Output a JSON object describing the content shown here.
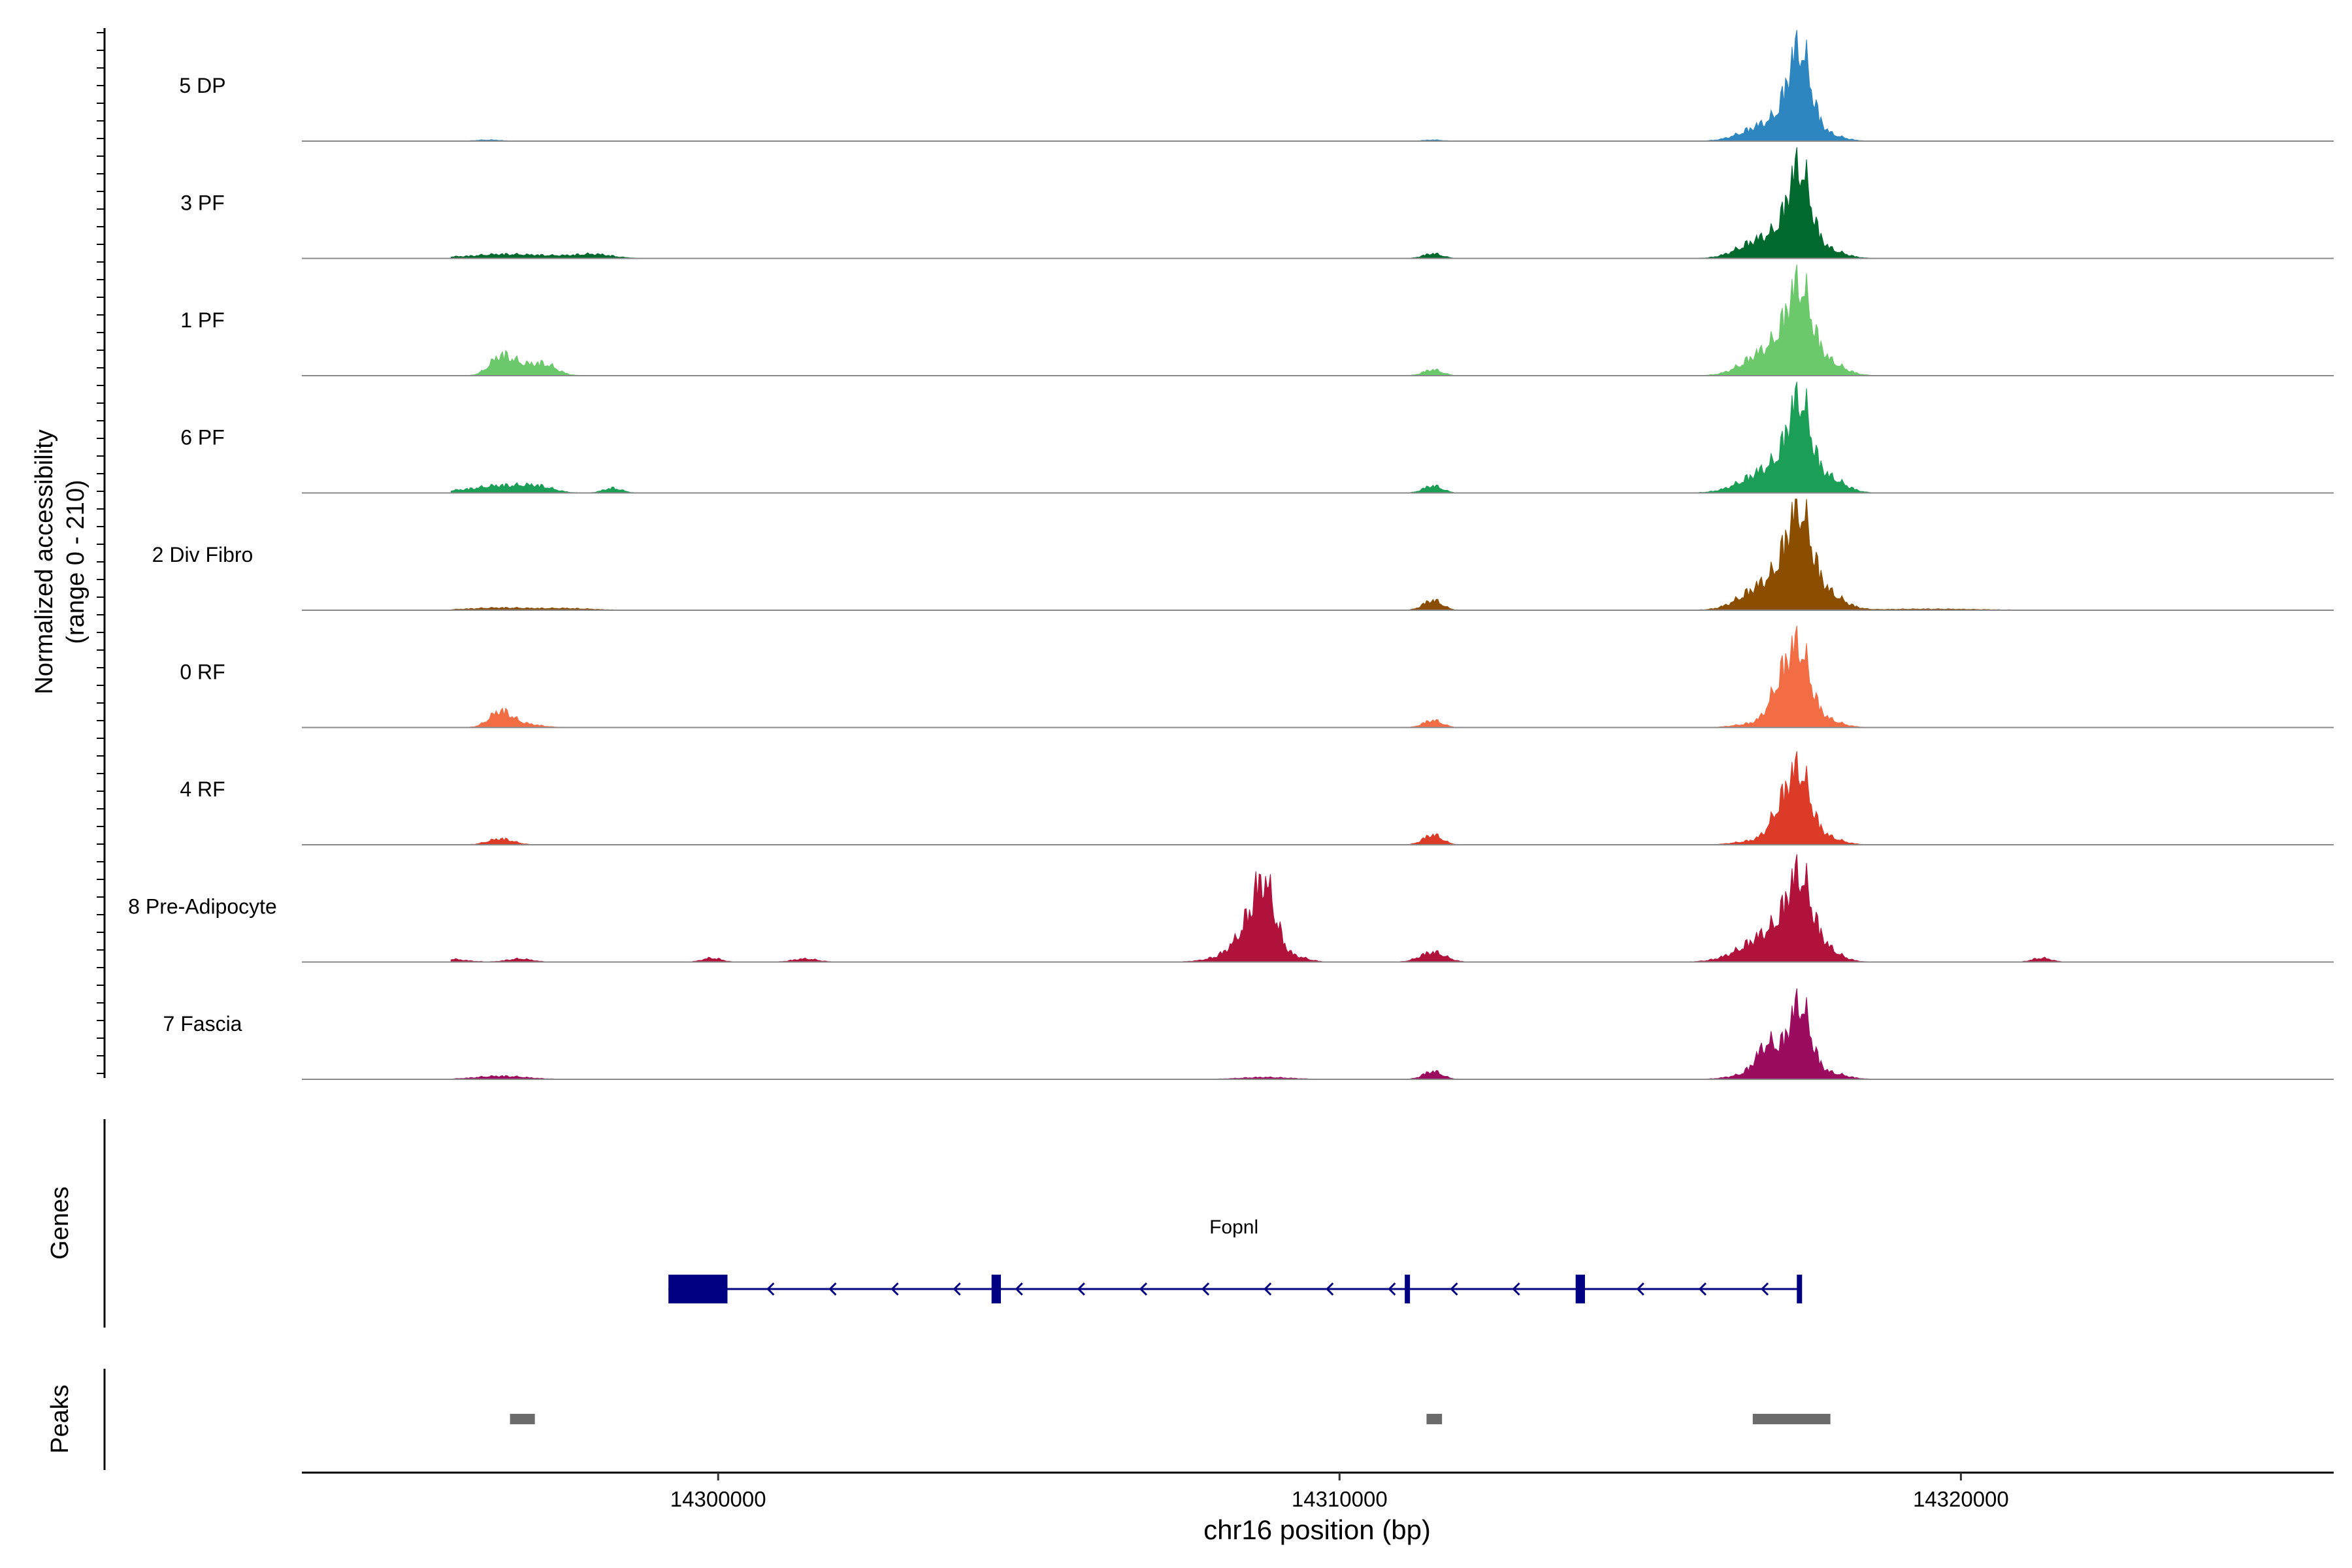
{
  "chart_data": {
    "type": "area",
    "ylabel_lines": [
      "Normalized accessibility",
      "(range 0 - 210)"
    ],
    "ylim": [
      0,
      210
    ],
    "xlabel": "chr16 position (bp)",
    "xlim": [
      14293300,
      14326000
    ],
    "x_ticks": [
      14300000,
      14310000,
      14320000
    ],
    "x_tick_labels": [
      "14300000",
      "14310000",
      "14320000"
    ],
    "grid": false,
    "legend": "none",
    "tracks": [
      {
        "label": "5 DP",
        "color": "#2E86C1",
        "peaks": [
          [
            14296300,
            3,
            200
          ],
          [
            14311500,
            3,
            150
          ],
          [
            14316600,
            8,
            300
          ],
          [
            14317100,
            50,
            400
          ],
          [
            14317400,
            195,
            180
          ],
          [
            14317800,
            8,
            250
          ],
          [
            14318000,
            4,
            200
          ]
        ]
      },
      {
        "label": "3 PF",
        "color": "#00692E",
        "peaks": [
          [
            14295200,
            5,
            400
          ],
          [
            14296500,
            10,
            450
          ],
          [
            14297300,
            5,
            350
          ],
          [
            14298000,
            10,
            300
          ],
          [
            14311500,
            12,
            150
          ],
          [
            14316600,
            15,
            300
          ],
          [
            14317100,
            55,
            400
          ],
          [
            14317400,
            185,
            180
          ],
          [
            14317900,
            15,
            250
          ]
        ]
      },
      {
        "label": "1 PF",
        "color": "#6BC96B",
        "peaks": [
          [
            14296500,
            45,
            180
          ],
          [
            14296800,
            20,
            200
          ],
          [
            14297200,
            28,
            200
          ],
          [
            14311500,
            15,
            150
          ],
          [
            14316700,
            15,
            300
          ],
          [
            14317100,
            65,
            400
          ],
          [
            14317400,
            175,
            200
          ],
          [
            14317900,
            25,
            250
          ]
        ]
      },
      {
        "label": "6 PF",
        "color": "#1B9E55",
        "peaks": [
          [
            14295800,
            5,
            300
          ],
          [
            14296500,
            18,
            350
          ],
          [
            14297100,
            15,
            250
          ],
          [
            14298300,
            12,
            150
          ],
          [
            14311500,
            18,
            150
          ],
          [
            14316600,
            12,
            350
          ],
          [
            14317100,
            65,
            400
          ],
          [
            14317400,
            185,
            180
          ],
          [
            14317900,
            30,
            250
          ]
        ]
      },
      {
        "label": "2 Div Fibro",
        "color": "#8B4D00",
        "peaks": [
          [
            14296500,
            6,
            500
          ],
          [
            14297600,
            4,
            400
          ],
          [
            14311500,
            25,
            150
          ],
          [
            14316600,
            15,
            300
          ],
          [
            14317100,
            75,
            400
          ],
          [
            14317400,
            195,
            200
          ],
          [
            14317900,
            30,
            250
          ],
          [
            14319500,
            3,
            800
          ]
        ]
      },
      {
        "label": "0 RF",
        "color": "#F26D44",
        "peaks": [
          [
            14296500,
            40,
            180
          ],
          [
            14296900,
            8,
            250
          ],
          [
            14311500,
            18,
            150
          ],
          [
            14316700,
            10,
            300
          ],
          [
            14317100,
            90,
            180
          ],
          [
            14317400,
            175,
            180
          ],
          [
            14317800,
            20,
            250
          ]
        ]
      },
      {
        "label": "4 RF",
        "color": "#DC3B28",
        "peaks": [
          [
            14296500,
            15,
            200
          ],
          [
            14311500,
            25,
            150
          ],
          [
            14316700,
            10,
            300
          ],
          [
            14317100,
            70,
            180
          ],
          [
            14317400,
            165,
            180
          ],
          [
            14317800,
            20,
            250
          ]
        ]
      },
      {
        "label": "8 Pre-Adipocyte",
        "color": "#B0123C",
        "peaks": [
          [
            14294900,
            12,
            250
          ],
          [
            14295600,
            8,
            300
          ],
          [
            14296800,
            8,
            200
          ],
          [
            14299900,
            10,
            150
          ],
          [
            14301400,
            8,
            200
          ],
          [
            14308300,
            15,
            350
          ],
          [
            14308600,
            70,
            250
          ],
          [
            14308800,
            145,
            180
          ],
          [
            14309300,
            12,
            200
          ],
          [
            14311500,
            25,
            200
          ],
          [
            14316500,
            15,
            350
          ],
          [
            14317000,
            70,
            350
          ],
          [
            14317400,
            175,
            200
          ],
          [
            14317800,
            30,
            250
          ],
          [
            14321300,
            10,
            150
          ]
        ]
      },
      {
        "label": "7 Fascia",
        "color": "#9C0C5E",
        "peaks": [
          [
            14296500,
            8,
            400
          ],
          [
            14308800,
            5,
            400
          ],
          [
            14311500,
            20,
            150
          ],
          [
            14316600,
            12,
            300
          ],
          [
            14316900,
            80,
            180
          ],
          [
            14317400,
            185,
            180
          ],
          [
            14317900,
            15,
            250
          ]
        ]
      }
    ],
    "genes": {
      "label": "Genes",
      "name": "Fopnl",
      "strand": "-",
      "start": 14299200,
      "end": 14317400,
      "exons": [
        [
          14299200,
          14300150
        ],
        [
          14304400,
          14304550
        ],
        [
          14311050,
          14311120
        ],
        [
          14313800,
          14313950
        ],
        [
          14317360,
          14317420
        ]
      ]
    },
    "peaks_track": {
      "label": "Peaks",
      "regions": [
        [
          14296650,
          14297050
        ],
        [
          14311400,
          14311650
        ],
        [
          14316650,
          14317900
        ]
      ]
    }
  }
}
